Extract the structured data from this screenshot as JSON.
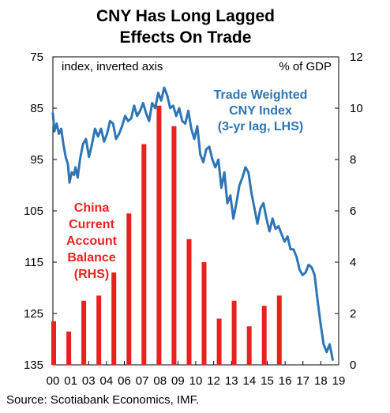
{
  "chart_data": {
    "type": "bar+line",
    "title": [
      "CNY Has Long Lagged",
      "Effects On Trade"
    ],
    "left_axis": {
      "label": "index, inverted axis",
      "inverted": true,
      "range": [
        75,
        135
      ],
      "ticks": [
        "75",
        "85",
        "95",
        "105",
        "115",
        "125",
        "135"
      ]
    },
    "right_axis": {
      "label": "% of GDP",
      "range": [
        0,
        12
      ],
      "ticks": [
        "12",
        "10",
        "8",
        "6",
        "4",
        "2",
        "0"
      ]
    },
    "x_ticks": [
      "00",
      "01",
      "03",
      "04",
      "06",
      "07",
      "08",
      "09",
      "10",
      "12",
      "13",
      "14",
      "15",
      "16",
      "17",
      "18",
      "19"
    ],
    "x_range": [
      2000,
      2019
    ],
    "bar_series": {
      "name_lines": [
        "China",
        "Current",
        "Account",
        "Balance",
        "(RHS)"
      ],
      "color": "#e8231f",
      "axis": "right",
      "categories": [
        "2000",
        "2001",
        "2002",
        "2003",
        "2004",
        "2005",
        "2006",
        "2007",
        "2008",
        "2009",
        "2010",
        "2011",
        "2012",
        "2013",
        "2014",
        "2015"
      ],
      "values": [
        1.7,
        1.3,
        2.5,
        2.7,
        3.6,
        5.9,
        8.6,
        10.1,
        9.3,
        4.9,
        4.0,
        1.8,
        2.5,
        1.5,
        2.3,
        2.7
      ]
    },
    "line_series": {
      "name_lines": [
        "Trade Weighted",
        "CNY Index",
        "(3-yr lag, LHS)"
      ],
      "color": "#2e75b6",
      "axis": "left",
      "x": [
        2000.0,
        2000.1,
        2000.25,
        2000.4,
        2000.55,
        2000.7,
        2000.85,
        2001.0,
        2001.1,
        2001.25,
        2001.4,
        2001.5,
        2001.65,
        2001.8,
        2002.0,
        2002.2,
        2002.4,
        2002.6,
        2002.8,
        2003.0,
        2003.2,
        2003.4,
        2003.6,
        2003.8,
        2004.0,
        2004.2,
        2004.4,
        2004.6,
        2004.8,
        2005.0,
        2005.2,
        2005.4,
        2005.6,
        2005.8,
        2006.0,
        2006.2,
        2006.4,
        2006.6,
        2006.8,
        2007.0,
        2007.2,
        2007.4,
        2007.6,
        2007.8,
        2008.0,
        2008.2,
        2008.4,
        2008.6,
        2008.8,
        2009.0,
        2009.2,
        2009.4,
        2009.6,
        2009.8,
        2010.0,
        2010.2,
        2010.4,
        2010.6,
        2010.8,
        2011.0,
        2011.2,
        2011.4,
        2011.6,
        2011.8,
        2012.0,
        2012.2,
        2012.4,
        2012.6,
        2012.8,
        2013.0,
        2013.2,
        2013.4,
        2013.6,
        2013.8,
        2014.0,
        2014.2,
        2014.4,
        2014.6,
        2014.8,
        2015.0,
        2015.2,
        2015.4,
        2015.6,
        2015.8,
        2016.0,
        2016.2,
        2016.4,
        2016.6,
        2016.8,
        2017.0,
        2017.2,
        2017.4,
        2017.6,
        2017.8,
        2018.0,
        2018.2,
        2018.4,
        2018.6
      ],
      "values": [
        86.0,
        89.5,
        88.0,
        90.0,
        89.0,
        92.0,
        94.5,
        96.0,
        99.5,
        97.5,
        98.0,
        96.5,
        98.5,
        95.0,
        92.0,
        91.0,
        94.5,
        92.0,
        89.0,
        90.5,
        89.0,
        91.5,
        90.0,
        87.5,
        88.0,
        91.0,
        90.0,
        88.5,
        86.5,
        87.5,
        87.0,
        84.5,
        86.5,
        85.5,
        84.0,
        86.0,
        87.5,
        84.0,
        85.0,
        82.0,
        83.5,
        81.0,
        82.5,
        85.0,
        84.5,
        86.5,
        85.0,
        87.5,
        88.0,
        85.5,
        89.0,
        91.0,
        88.5,
        94.0,
        95.5,
        93.0,
        92.5,
        95.0,
        96.5,
        95.0,
        100.5,
        97.5,
        103.5,
        102.0,
        106.5,
        103.5,
        100.0,
        98.5,
        96.5,
        97.5,
        101.5,
        104.5,
        107.5,
        104.5,
        103.5,
        106.5,
        109.0,
        106.5,
        108.5,
        108.0,
        109.5,
        111.0,
        110.0,
        112.5,
        112.5,
        114.0,
        116.5,
        117.5,
        117.0,
        115.5,
        116.0,
        117.5,
        122.5,
        127.0,
        131.0,
        132.5,
        131.0,
        134.0
      ]
    },
    "source": "Source: Scotiabank Economics, IMF."
  }
}
